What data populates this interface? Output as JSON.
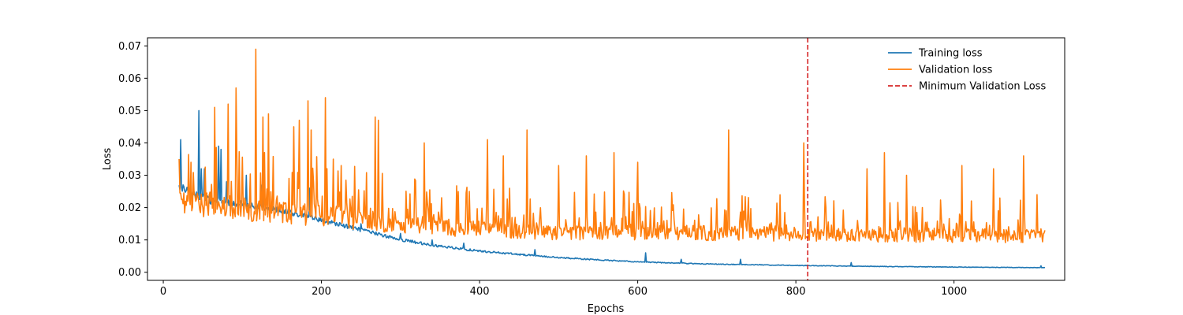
{
  "chart_data": {
    "type": "line",
    "title": "",
    "xlabel": "Epochs",
    "ylabel": "Loss",
    "xlim": [
      -20,
      1140
    ],
    "ylim": [
      -0.0025,
      0.0725
    ],
    "x_ticks": [
      0,
      200,
      400,
      600,
      800,
      1000
    ],
    "x_tick_labels": [
      "0",
      "200",
      "400",
      "600",
      "800",
      "1000"
    ],
    "y_ticks": [
      0.0,
      0.01,
      0.02,
      0.03,
      0.04,
      0.05,
      0.06,
      0.07
    ],
    "y_tick_labels": [
      "0.00",
      "0.01",
      "0.02",
      "0.03",
      "0.04",
      "0.05",
      "0.06",
      "0.07"
    ],
    "grid": false,
    "legend": {
      "placement": "top-right"
    },
    "series": [
      {
        "name": "Training loss",
        "color": "#1f77b4",
        "x_start": 20,
        "x_end": 1115,
        "baseline": [
          [
            20,
            0.026
          ],
          [
            40,
            0.024
          ],
          [
            60,
            0.022
          ],
          [
            100,
            0.021
          ],
          [
            150,
            0.019
          ],
          [
            200,
            0.016
          ],
          [
            250,
            0.013
          ],
          [
            300,
            0.01
          ],
          [
            350,
            0.008
          ],
          [
            400,
            0.0065
          ],
          [
            450,
            0.0055
          ],
          [
            500,
            0.0045
          ],
          [
            550,
            0.0038
          ],
          [
            600,
            0.0032
          ],
          [
            650,
            0.0028
          ],
          [
            700,
            0.0025
          ],
          [
            750,
            0.0023
          ],
          [
            800,
            0.0021
          ],
          [
            900,
            0.0018
          ],
          [
            1000,
            0.0016
          ],
          [
            1115,
            0.0014
          ]
        ],
        "noise": 0.07,
        "spikes": [
          [
            22,
            0.041
          ],
          [
            25,
            0.027
          ],
          [
            45,
            0.05
          ],
          [
            48,
            0.032
          ],
          [
            52,
            0.032
          ],
          [
            70,
            0.039
          ],
          [
            73,
            0.038
          ],
          [
            80,
            0.028
          ],
          [
            105,
            0.03
          ],
          [
            125,
            0.027
          ],
          [
            185,
            0.026
          ],
          [
            250,
            0.015
          ],
          [
            300,
            0.012
          ],
          [
            340,
            0.01
          ],
          [
            380,
            0.009
          ],
          [
            470,
            0.007
          ],
          [
            610,
            0.006
          ],
          [
            655,
            0.004
          ],
          [
            730,
            0.004
          ],
          [
            870,
            0.003
          ],
          [
            1110,
            0.002
          ]
        ]
      },
      {
        "name": "Validation loss",
        "color": "#ff7f0e",
        "x_start": 20,
        "x_end": 1115,
        "baseline": [
          [
            20,
            0.021
          ],
          [
            100,
            0.019
          ],
          [
            200,
            0.017
          ],
          [
            300,
            0.014
          ],
          [
            400,
            0.013
          ],
          [
            500,
            0.012
          ],
          [
            600,
            0.012
          ],
          [
            800,
            0.0115
          ],
          [
            1000,
            0.011
          ],
          [
            1115,
            0.011
          ]
        ],
        "noise": 0.28,
        "spikes": [
          [
            20,
            0.035
          ],
          [
            35,
            0.034
          ],
          [
            65,
            0.051
          ],
          [
            82,
            0.052
          ],
          [
            92,
            0.057
          ],
          [
            117,
            0.069
          ],
          [
            126,
            0.048
          ],
          [
            133,
            0.049
          ],
          [
            165,
            0.045
          ],
          [
            172,
            0.047
          ],
          [
            183,
            0.053
          ],
          [
            187,
            0.044
          ],
          [
            205,
            0.054
          ],
          [
            215,
            0.035
          ],
          [
            268,
            0.048
          ],
          [
            272,
            0.047
          ],
          [
            330,
            0.04
          ],
          [
            410,
            0.041
          ],
          [
            430,
            0.036
          ],
          [
            460,
            0.044
          ],
          [
            500,
            0.033
          ],
          [
            535,
            0.036
          ],
          [
            570,
            0.037
          ],
          [
            600,
            0.034
          ],
          [
            715,
            0.044
          ],
          [
            810,
            0.04
          ],
          [
            890,
            0.032
          ],
          [
            912,
            0.037
          ],
          [
            940,
            0.03
          ],
          [
            1010,
            0.033
          ],
          [
            1050,
            0.032
          ],
          [
            1088,
            0.036
          ],
          [
            1105,
            0.024
          ]
        ]
      }
    ],
    "reference_lines": [
      {
        "name": "Minimum Validation Loss",
        "orientation": "vertical",
        "x": 815,
        "color": "#d62728",
        "style": "dashed"
      }
    ]
  }
}
